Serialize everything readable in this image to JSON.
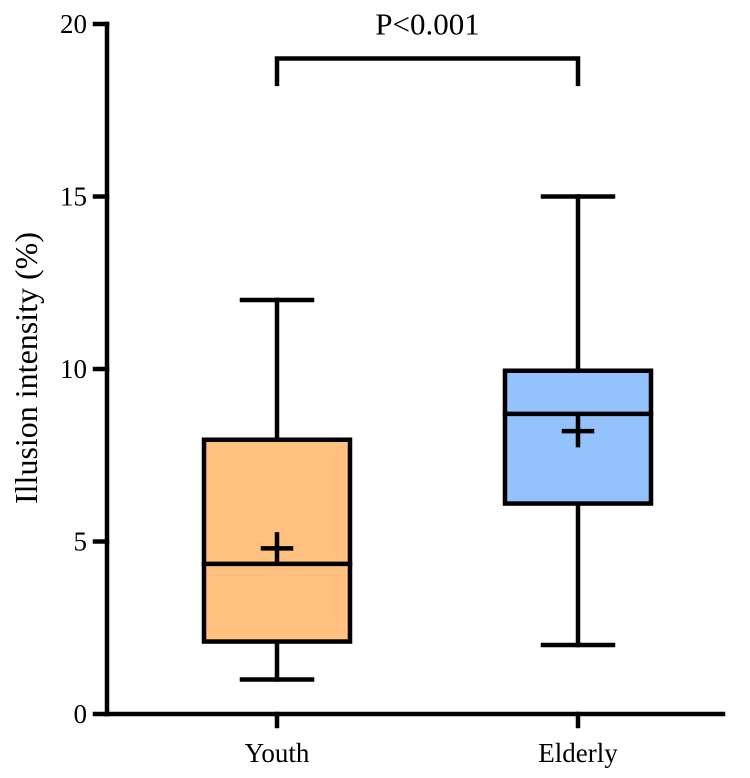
{
  "chart_data": {
    "type": "box",
    "ylabel": "Illusion intensity (%)",
    "ylim": [
      0,
      20
    ],
    "yticks": [
      0,
      5,
      10,
      15,
      20
    ],
    "categories": [
      "Youth",
      "Elderly"
    ],
    "boxes": [
      {
        "category": "Youth",
        "min": 1,
        "q1": 2.1,
        "median": 4.35,
        "q3": 7.95,
        "max": 12,
        "mean": 4.8,
        "color": "#FFC080"
      },
      {
        "category": "Elderly",
        "min": 2,
        "q1": 6.1,
        "median": 8.7,
        "q3": 9.95,
        "max": 15,
        "mean": 8.2,
        "color": "#93C2FC"
      }
    ],
    "annotation": {
      "text": "P<0.001",
      "between": [
        "Youth",
        "Elderly"
      ],
      "bracket_y": 19,
      "bracket_drop": 0.8
    },
    "grid": false,
    "legend": "none"
  }
}
